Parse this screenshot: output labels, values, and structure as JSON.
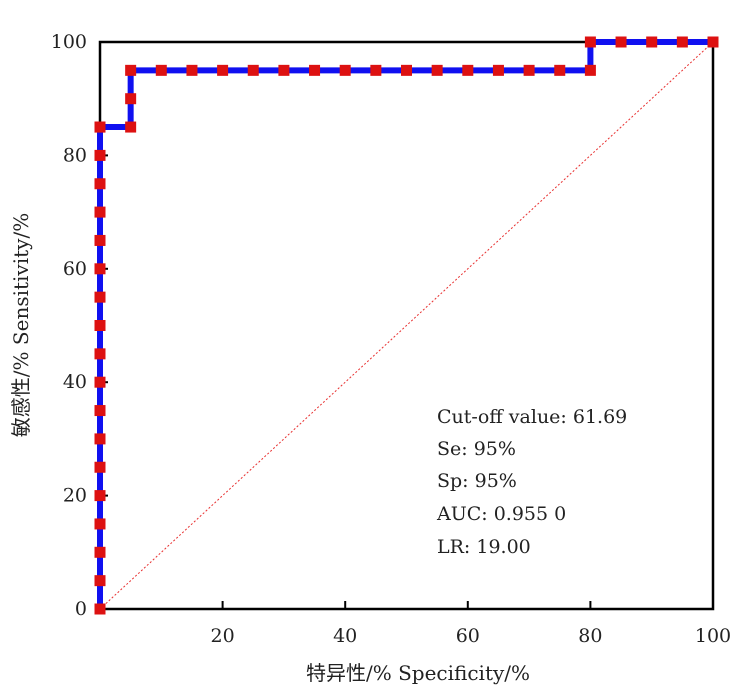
{
  "chart_data": {
    "type": "line",
    "xlabel": "特异性/% Specificity/%",
    "ylabel": "敏感性/%  Sensitivity/%",
    "xlim": [
      0,
      100
    ],
    "ylim": [
      0,
      100
    ],
    "x_ticks": [
      "20",
      "40",
      "60",
      "80",
      "100"
    ],
    "y_ticks": [
      "0",
      "20",
      "40",
      "60",
      "80",
      "100"
    ],
    "grid": false,
    "series": [
      {
        "color": "#1010f0",
        "marker_color": "#dd1111",
        "x": [
          0,
          0,
          0,
          0,
          0,
          0,
          0,
          0,
          0,
          0,
          0,
          0,
          0,
          0,
          0,
          0,
          0,
          0,
          0,
          5,
          5,
          5,
          10,
          15,
          20,
          25,
          30,
          35,
          40,
          45,
          50,
          55,
          60,
          65,
          70,
          75,
          80,
          80,
          85,
          90,
          95,
          100
        ],
        "y": [
          0,
          5,
          10,
          15,
          20,
          25,
          30,
          35,
          40,
          45,
          50,
          55,
          60,
          65,
          70,
          75,
          80,
          85,
          85,
          85,
          90,
          95,
          95,
          95,
          95,
          95,
          95,
          95,
          95,
          95,
          95,
          95,
          95,
          95,
          95,
          95,
          95,
          100,
          100,
          100,
          100,
          100
        ]
      },
      {
        "color": "#e83030",
        "x": [
          0,
          100
        ],
        "y": [
          0,
          100
        ]
      }
    ],
    "annotations": [
      "Cut-off value: 61.69",
      "Se: 95%",
      "Sp: 95%",
      "AUC: 0.955 0",
      "LR: 19.00"
    ]
  }
}
